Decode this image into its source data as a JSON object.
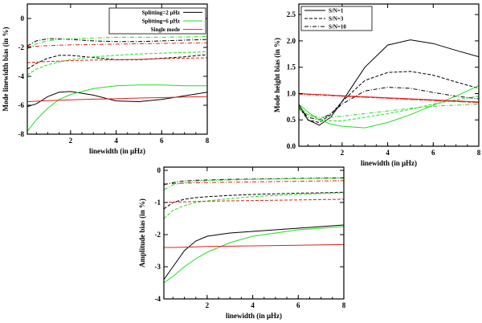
{
  "figure": {
    "colors": {
      "black": "#000000",
      "green": "#22dd22",
      "red": "#e02020"
    },
    "line_styles": {
      "solid": "",
      "dashed": "4,2",
      "dash-dot": "5,2,1,2"
    }
  },
  "chart_data": [
    {
      "id": "linewidth",
      "type": "line",
      "title": "",
      "xlabel": "linewidth (in μHz)",
      "ylabel": "Mode linewidth bias (in %)",
      "xlim": [
        0.1,
        8
      ],
      "ylim": [
        -8,
        1
      ],
      "xticks": [
        2,
        4,
        6,
        8
      ],
      "yticks": [
        -8,
        -6,
        -4,
        -2,
        0
      ],
      "x": [
        0.1,
        0.5,
        1,
        1.5,
        2,
        3,
        4,
        5,
        6,
        7,
        8
      ],
      "legend": [
        {
          "label": "Splitting=2 μHz",
          "color": "black",
          "style": "solid"
        },
        {
          "label": "Splitting=6 μHz",
          "color": "green",
          "style": "solid"
        },
        {
          "label": "Single mode",
          "color": "red",
          "style": "solid"
        }
      ],
      "series": [
        {
          "name": "Splitting=2 μHz, S/N=1",
          "color": "black",
          "style": "solid",
          "values": [
            -6.1,
            -5.9,
            -5.4,
            -5.1,
            -5.05,
            -5.3,
            -5.7,
            -5.75,
            -5.6,
            -5.35,
            -5.1
          ]
        },
        {
          "name": "Splitting=6 μHz, S/N=1",
          "color": "green",
          "style": "solid",
          "values": [
            -7.8,
            -7.0,
            -6.2,
            -5.6,
            -5.25,
            -4.85,
            -4.65,
            -4.6,
            -4.6,
            -4.65,
            -4.65
          ]
        },
        {
          "name": "Single mode, S/N=1",
          "color": "red",
          "style": "solid",
          "values": [
            -5.75,
            -5.72,
            -5.68,
            -5.65,
            -5.62,
            -5.58,
            -5.55,
            -5.5,
            -5.47,
            -5.43,
            -5.4
          ]
        },
        {
          "name": "Splitting=2 μHz, S/N=3",
          "color": "black",
          "style": "dashed",
          "values": [
            -3.5,
            -3.1,
            -2.75,
            -2.55,
            -2.55,
            -2.7,
            -2.85,
            -2.85,
            -2.75,
            -2.65,
            -2.5
          ]
        },
        {
          "name": "Splitting=6 μHz, S/N=3",
          "color": "green",
          "style": "dashed",
          "values": [
            -3.9,
            -3.5,
            -3.2,
            -3.0,
            -2.85,
            -2.65,
            -2.55,
            -2.45,
            -2.4,
            -2.35,
            -2.3
          ]
        },
        {
          "name": "Single mode, S/N=3",
          "color": "red",
          "style": "dashed",
          "values": [
            -3.05,
            -3.02,
            -2.98,
            -2.95,
            -2.92,
            -2.88,
            -2.85,
            -2.82,
            -2.78,
            -2.75,
            -2.72
          ]
        },
        {
          "name": "Splitting=2 μHz, S/N=10",
          "color": "black",
          "style": "dash-dot",
          "values": [
            -1.9,
            -1.55,
            -1.4,
            -1.4,
            -1.45,
            -1.55,
            -1.6,
            -1.6,
            -1.55,
            -1.5,
            -1.45
          ]
        },
        {
          "name": "Splitting=6 μHz, S/N=10",
          "color": "green",
          "style": "dash-dot",
          "values": [
            -2.1,
            -1.75,
            -1.55,
            -1.45,
            -1.4,
            -1.35,
            -1.3,
            -1.3,
            -1.3,
            -1.28,
            -1.25
          ]
        },
        {
          "name": "Single mode, S/N=10",
          "color": "red",
          "style": "dash-dot",
          "values": [
            -1.95,
            -1.92,
            -1.88,
            -1.85,
            -1.82,
            -1.8,
            -1.77,
            -1.75,
            -1.72,
            -1.7,
            -1.68
          ]
        }
      ]
    },
    {
      "id": "height",
      "type": "line",
      "title": "",
      "xlabel": "linewidth (in μHz)",
      "ylabel": "Mode height bias (in %)",
      "xlim": [
        0.1,
        8
      ],
      "ylim": [
        0,
        2.7
      ],
      "xticks": [
        2,
        4,
        6,
        8
      ],
      "yticks": [
        0.0,
        0.5,
        1.0,
        1.5,
        2.0,
        2.5
      ],
      "ytick_labels": [
        "0.0",
        "0.5",
        "1.0",
        "1.5",
        "2.0",
        "2.5"
      ],
      "x": [
        0.1,
        0.5,
        1,
        1.5,
        2,
        3,
        4,
        5,
        6,
        7,
        8
      ],
      "legend": [
        {
          "label": "S/N=1",
          "color": "black",
          "style": "solid"
        },
        {
          "label": "S/N=3",
          "color": "black",
          "style": "dashed"
        },
        {
          "label": "S/N=10",
          "color": "black",
          "style": "dash-dot"
        }
      ],
      "series": [
        {
          "name": "Splitting=2 μHz, S/N=1",
          "color": "black",
          "style": "solid",
          "values": [
            0.8,
            0.5,
            0.4,
            0.55,
            0.85,
            1.5,
            1.92,
            2.02,
            1.95,
            1.82,
            1.7
          ]
        },
        {
          "name": "Splitting=2 μHz, S/N=3",
          "color": "black",
          "style": "dashed",
          "values": [
            0.75,
            0.5,
            0.45,
            0.6,
            0.85,
            1.25,
            1.4,
            1.42,
            1.35,
            1.22,
            1.1
          ]
        },
        {
          "name": "Splitting=2 μHz, S/N=10",
          "color": "black",
          "style": "dash-dot",
          "values": [
            0.75,
            0.55,
            0.5,
            0.62,
            0.8,
            1.05,
            1.12,
            1.1,
            1.02,
            0.95,
            0.9
          ]
        },
        {
          "name": "Splitting=6 μHz, S/N=1",
          "color": "green",
          "style": "solid",
          "values": [
            0.8,
            0.65,
            0.5,
            0.42,
            0.38,
            0.35,
            0.45,
            0.6,
            0.78,
            0.95,
            1.15
          ]
        },
        {
          "name": "Splitting=6 μHz, S/N=3",
          "color": "green",
          "style": "dashed",
          "values": [
            0.75,
            0.6,
            0.52,
            0.48,
            0.48,
            0.55,
            0.62,
            0.7,
            0.8,
            0.88,
            0.95
          ]
        },
        {
          "name": "Splitting=6 μHz, S/N=10",
          "color": "green",
          "style": "dash-dot",
          "values": [
            0.7,
            0.6,
            0.55,
            0.55,
            0.57,
            0.62,
            0.67,
            0.72,
            0.76,
            0.78,
            0.8
          ]
        },
        {
          "name": "Single mode, S/N=1",
          "color": "red",
          "style": "solid",
          "values": [
            1.0,
            0.99,
            0.98,
            0.97,
            0.96,
            0.94,
            0.92,
            0.9,
            0.88,
            0.86,
            0.84
          ]
        },
        {
          "name": "Single mode, S/N=3",
          "color": "red",
          "style": "dashed",
          "values": [
            1.0,
            0.99,
            0.98,
            0.97,
            0.95,
            0.93,
            0.91,
            0.89,
            0.87,
            0.85,
            0.83
          ]
        },
        {
          "name": "Single mode, S/N=10",
          "color": "red",
          "style": "dash-dot",
          "values": [
            0.99,
            0.98,
            0.97,
            0.96,
            0.95,
            0.93,
            0.91,
            0.89,
            0.87,
            0.85,
            0.83
          ]
        }
      ]
    },
    {
      "id": "amplitude",
      "type": "line",
      "title": "",
      "xlabel": "linewidth (in μHz)",
      "ylabel": "Amplitude bias (in %)",
      "xlim": [
        0.1,
        8
      ],
      "ylim": [
        -4,
        0.1
      ],
      "xticks": [
        2,
        4,
        6,
        8
      ],
      "yticks": [
        -4,
        -3,
        -2,
        -1,
        0
      ],
      "x": [
        0.1,
        0.5,
        1,
        1.5,
        2,
        3,
        4,
        5,
        6,
        7,
        8
      ],
      "series": [
        {
          "name": "Splitting=2 μHz, S/N=1",
          "color": "black",
          "style": "solid",
          "values": [
            -3.4,
            -3.0,
            -2.5,
            -2.2,
            -2.05,
            -1.95,
            -1.9,
            -1.85,
            -1.8,
            -1.75,
            -1.7
          ]
        },
        {
          "name": "Splitting=6 μHz, S/N=1",
          "color": "green",
          "style": "solid",
          "values": [
            -3.5,
            -3.3,
            -3.0,
            -2.75,
            -2.55,
            -2.25,
            -2.05,
            -1.95,
            -1.85,
            -1.8,
            -1.75
          ]
        },
        {
          "name": "Single mode, S/N=1",
          "color": "red",
          "style": "solid",
          "values": [
            -2.4,
            -2.4,
            -2.39,
            -2.38,
            -2.37,
            -2.36,
            -2.35,
            -2.34,
            -2.33,
            -2.32,
            -2.31
          ]
        },
        {
          "name": "Splitting=2 μHz, S/N=3",
          "color": "black",
          "style": "dashed",
          "values": [
            -1.2,
            -1.0,
            -0.9,
            -0.85,
            -0.82,
            -0.78,
            -0.75,
            -0.73,
            -0.71,
            -0.7,
            -0.68
          ]
        },
        {
          "name": "Splitting=6 μHz, S/N=3",
          "color": "green",
          "style": "dashed",
          "values": [
            -1.5,
            -1.25,
            -1.1,
            -1.0,
            -0.95,
            -0.88,
            -0.82,
            -0.78,
            -0.75,
            -0.72,
            -0.7
          ]
        },
        {
          "name": "Single mode, S/N=3",
          "color": "red",
          "style": "dashed",
          "values": [
            -1.0,
            -0.99,
            -0.98,
            -0.97,
            -0.96,
            -0.95,
            -0.94,
            -0.93,
            -0.92,
            -0.91,
            -0.9
          ]
        },
        {
          "name": "Splitting=2 μHz, S/N=10",
          "color": "black",
          "style": "dash-dot",
          "values": [
            -0.45,
            -0.38,
            -0.33,
            -0.31,
            -0.3,
            -0.28,
            -0.27,
            -0.26,
            -0.25,
            -0.24,
            -0.23
          ]
        },
        {
          "name": "Splitting=6 μHz, S/N=10",
          "color": "green",
          "style": "dash-dot",
          "values": [
            -0.6,
            -0.45,
            -0.38,
            -0.35,
            -0.32,
            -0.3,
            -0.28,
            -0.27,
            -0.26,
            -0.25,
            -0.25
          ]
        },
        {
          "name": "Single mode, S/N=10",
          "color": "red",
          "style": "dash-dot",
          "values": [
            -0.42,
            -0.41,
            -0.4,
            -0.39,
            -0.38,
            -0.37,
            -0.36,
            -0.35,
            -0.34,
            -0.33,
            -0.32
          ]
        }
      ]
    }
  ]
}
